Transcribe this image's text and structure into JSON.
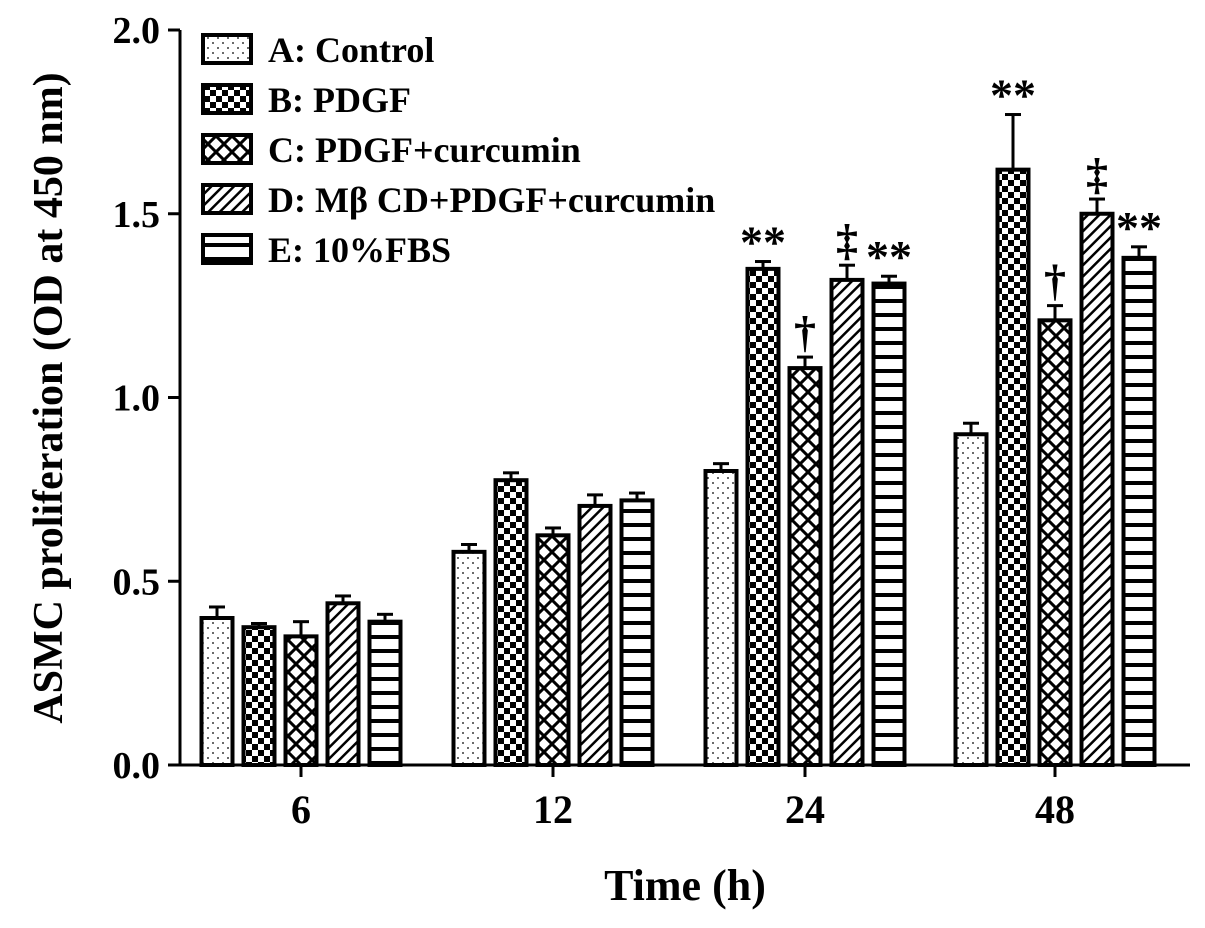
{
  "chart_data": {
    "type": "bar",
    "title": "",
    "xlabel": "Time (h)",
    "ylabel": "ASMC proliferation (OD at 450 nm)",
    "ylim": [
      0,
      2.0
    ],
    "yticks": [
      "0.0",
      "0.5",
      "1.0",
      "1.5",
      "2.0"
    ],
    "ytick_values": [
      0,
      0.5,
      1.0,
      1.5,
      2.0
    ],
    "categories": [
      "6",
      "12",
      "24",
      "48"
    ],
    "legend_placement": "top-left",
    "series": [
      {
        "name": "A: Control",
        "pattern": "dots",
        "values": [
          0.4,
          0.58,
          0.8,
          0.9
        ],
        "errors": [
          0.03,
          0.02,
          0.02,
          0.03
        ],
        "annotations": [
          "",
          "",
          "",
          ""
        ]
      },
      {
        "name": "B: PDGF",
        "pattern": "checker",
        "values": [
          0.375,
          0.775,
          1.35,
          1.62
        ],
        "errors": [
          0.01,
          0.02,
          0.02,
          0.15
        ],
        "annotations": [
          "",
          "",
          "**",
          "**"
        ]
      },
      {
        "name": "C: PDGF+curcumin",
        "pattern": "crosshatch",
        "values": [
          0.35,
          0.625,
          1.08,
          1.21
        ],
        "errors": [
          0.04,
          0.02,
          0.03,
          0.04
        ],
        "annotations": [
          "",
          "",
          "†",
          "†"
        ]
      },
      {
        "name": "D: Mβ CD+PDGF+curcumin",
        "pattern": "diagonal",
        "values": [
          0.44,
          0.705,
          1.32,
          1.5
        ],
        "errors": [
          0.02,
          0.03,
          0.04,
          0.04
        ],
        "annotations": [
          "",
          "",
          "‡",
          "‡"
        ]
      },
      {
        "name": "E: 10%FBS",
        "pattern": "horizontal",
        "values": [
          0.39,
          0.72,
          1.31,
          1.38
        ],
        "errors": [
          0.02,
          0.02,
          0.02,
          0.03
        ],
        "annotations": [
          "",
          "",
          "**",
          "**"
        ]
      }
    ]
  }
}
